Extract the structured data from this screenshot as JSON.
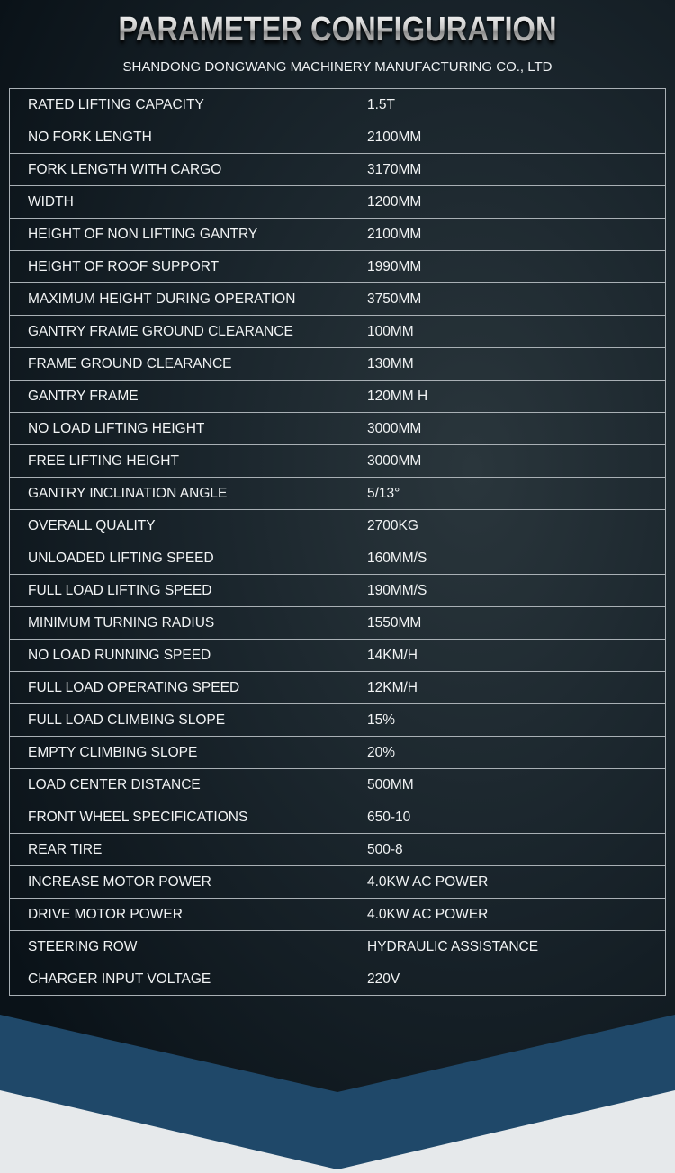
{
  "header": {
    "title": "PARAMETER CONFIGURATION",
    "subtitle": "SHANDONG DONGWANG MACHINERY MANUFACTURING CO., LTD"
  },
  "colors": {
    "band": "#1f4869",
    "background": "#0e1820",
    "bottom": "#e9ecee"
  },
  "rows": [
    [
      "RATED LIFTING CAPACITY",
      "1.5T"
    ],
    [
      "NO FORK LENGTH",
      "2100MM"
    ],
    [
      "FORK LENGTH WITH CARGO",
      "3170MM"
    ],
    [
      "WIDTH",
      "1200MM"
    ],
    [
      "HEIGHT OF NON LIFTING GANTRY",
      "2100MM"
    ],
    [
      "HEIGHT OF ROOF SUPPORT",
      "1990MM"
    ],
    [
      "MAXIMUM HEIGHT DURING OPERATION",
      "3750MM"
    ],
    [
      "GANTRY FRAME GROUND CLEARANCE",
      "100MM"
    ],
    [
      "FRAME GROUND CLEARANCE",
      "130MM"
    ],
    [
      "GANTRY FRAME",
      "120MM H"
    ],
    [
      "NO LOAD LIFTING HEIGHT",
      "3000MM"
    ],
    [
      "FREE LIFTING HEIGHT",
      "3000MM"
    ],
    [
      "GANTRY INCLINATION ANGLE",
      "5/13°"
    ],
    [
      "OVERALL QUALITY",
      "2700KG"
    ],
    [
      "UNLOADED LIFTING SPEED",
      "160MM/S"
    ],
    [
      "FULL LOAD LIFTING SPEED",
      "190MM/S"
    ],
    [
      "MINIMUM TURNING RADIUS",
      "1550MM"
    ],
    [
      "NO LOAD RUNNING SPEED",
      "14KM/H"
    ],
    [
      "FULL LOAD OPERATING SPEED",
      "12KM/H"
    ],
    [
      "FULL LOAD CLIMBING SLOPE",
      "15%"
    ],
    [
      "EMPTY CLIMBING SLOPE",
      "20%"
    ],
    [
      "LOAD CENTER DISTANCE",
      "500MM"
    ],
    [
      "FRONT WHEEL SPECIFICATIONS",
      "650-10"
    ],
    [
      "REAR TIRE",
      "500-8"
    ],
    [
      "INCREASE MOTOR POWER",
      "4.0KW AC POWER"
    ],
    [
      "DRIVE MOTOR POWER",
      "4.0KW AC POWER"
    ],
    [
      "STEERING ROW",
      "HYDRAULIC ASSISTANCE"
    ],
    [
      "CHARGER INPUT VOLTAGE",
      "220V"
    ]
  ]
}
